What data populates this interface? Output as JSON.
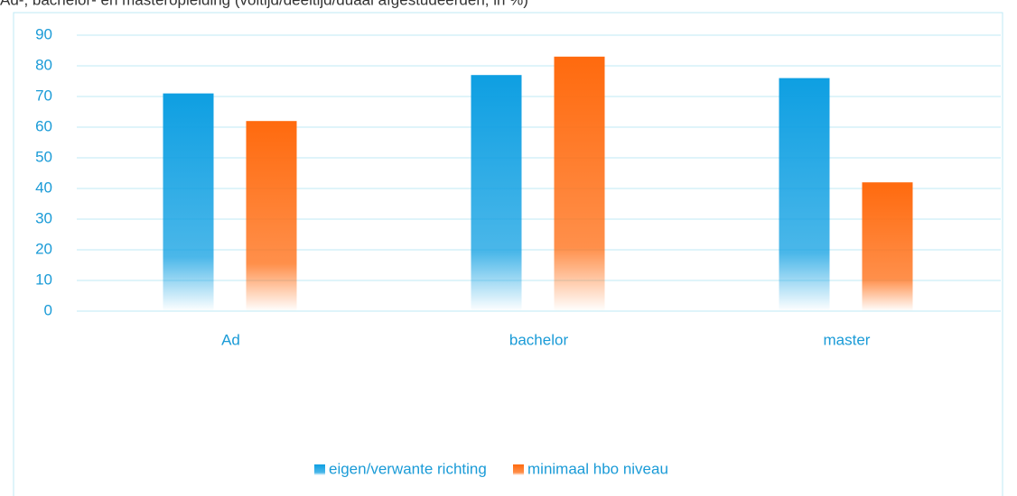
{
  "chart_data": {
    "type": "bar",
    "title": "Ad-, bachelor- en masteropleiding (voltijd/deeltijd/duaal afgestudeerden, in %)",
    "categories": [
      "Ad",
      "bachelor",
      "master"
    ],
    "series": [
      {
        "name": "eigen/verwante richting",
        "color": "#0e9fe2",
        "values": [
          71,
          77,
          76
        ]
      },
      {
        "name": "minimaal hbo niveau",
        "color": "#ff6a0e",
        "values": [
          62,
          83,
          42
        ]
      }
    ],
    "ylim": [
      0,
      90
    ],
    "yticks": [
      0,
      10,
      20,
      30,
      40,
      50,
      60,
      70,
      80,
      90
    ],
    "grid": true,
    "legend": "bottom"
  }
}
